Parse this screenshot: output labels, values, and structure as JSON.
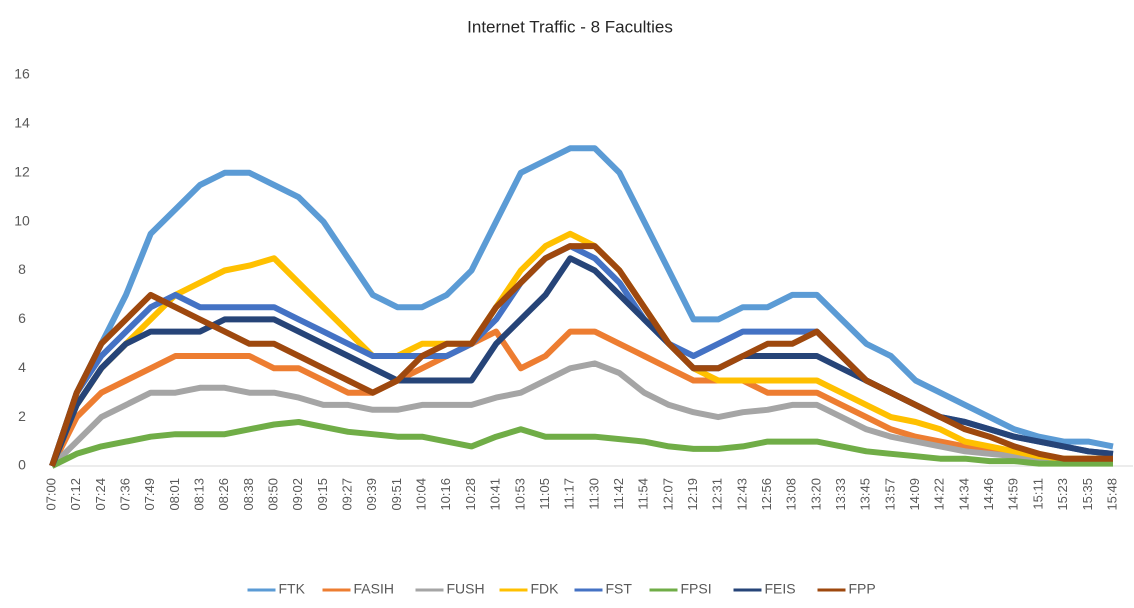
{
  "chart_data": {
    "type": "line",
    "title": "Internet Traffic - 8 Faculties",
    "categories": [
      "07:00",
      "07:12",
      "07:24",
      "07:36",
      "07:49",
      "08:01",
      "08:13",
      "08:26",
      "08:38",
      "08:50",
      "09:02",
      "09:15",
      "09:27",
      "09:39",
      "09:51",
      "10:04",
      "10:16",
      "10:28",
      "10:41",
      "10:53",
      "11:05",
      "11:17",
      "11:30",
      "11:42",
      "11:54",
      "12:07",
      "12:19",
      "12:31",
      "12:43",
      "12:56",
      "13:08",
      "13:20",
      "13:33",
      "13:45",
      "13:57",
      "14:09",
      "14:22",
      "14:34",
      "14:46",
      "14:59",
      "15:11",
      "15:23",
      "15:35",
      "15:48"
    ],
    "series": [
      {
        "name": "FTK",
        "color": "#5b9bd5",
        "values": [
          0,
          3,
          5,
          7,
          9.5,
          10.5,
          11.5,
          12,
          12,
          11.5,
          11,
          10,
          8.5,
          7,
          6.5,
          6.5,
          7,
          8,
          10,
          12,
          12.5,
          13,
          13,
          12,
          10,
          8,
          6,
          6,
          6.5,
          6.5,
          7,
          7,
          6,
          5,
          4.5,
          3.5,
          3,
          2.5,
          2,
          1.5,
          1.2,
          1,
          1,
          0.8
        ]
      },
      {
        "name": "FASIH",
        "color": "#ed7d31",
        "values": [
          0,
          2,
          3,
          3.5,
          4,
          4.5,
          4.5,
          4.5,
          4.5,
          4,
          4,
          3.5,
          3,
          3,
          3.5,
          4,
          4.5,
          5,
          5.5,
          4,
          4.5,
          5.5,
          5.5,
          5,
          4.5,
          4,
          3.5,
          3.5,
          3.5,
          3,
          3,
          3,
          2.5,
          2,
          1.5,
          1.2,
          1,
          0.8,
          0.6,
          0.5,
          0.4,
          0.3,
          0.3,
          0.3
        ]
      },
      {
        "name": "FUSH",
        "color": "#a5a5a5",
        "values": [
          0,
          1,
          2,
          2.5,
          3,
          3,
          3.2,
          3.2,
          3,
          3,
          2.8,
          2.5,
          2.5,
          2.3,
          2.3,
          2.5,
          2.5,
          2.5,
          2.8,
          3,
          3.5,
          4,
          4.2,
          3.8,
          3,
          2.5,
          2.2,
          2,
          2.2,
          2.3,
          2.5,
          2.5,
          2,
          1.5,
          1.2,
          1,
          0.8,
          0.6,
          0.5,
          0.4,
          0.3,
          0.3,
          0.3,
          0.3
        ]
      },
      {
        "name": "FDK",
        "color": "#ffc000",
        "values": [
          0,
          2.5,
          4,
          5,
          6,
          7,
          7.5,
          8,
          8.2,
          8.5,
          7.5,
          6.5,
          5.5,
          4.5,
          4.5,
          5,
          5,
          5,
          6.5,
          8,
          9,
          9.5,
          9,
          8,
          6.5,
          5,
          4,
          3.5,
          3.5,
          3.5,
          3.5,
          3.5,
          3,
          2.5,
          2,
          1.8,
          1.5,
          1,
          0.8,
          0.6,
          0.4,
          0.3,
          0.3,
          0.3
        ]
      },
      {
        "name": "FST",
        "color": "#4472c4",
        "values": [
          0,
          3,
          4.5,
          5.5,
          6.5,
          7,
          6.5,
          6.5,
          6.5,
          6.5,
          6,
          5.5,
          5,
          4.5,
          4.5,
          4.5,
          4.5,
          5,
          6,
          7.5,
          8.5,
          9,
          8.5,
          7.5,
          6,
          5,
          4.5,
          5,
          5.5,
          5.5,
          5.5,
          5.5,
          4.5,
          3.5,
          3,
          2.5,
          2,
          1.8,
          1.5,
          1.2,
          1,
          0.8,
          0.6,
          0.5
        ]
      },
      {
        "name": "FPSI",
        "color": "#70ad47",
        "values": [
          0,
          0.5,
          0.8,
          1,
          1.2,
          1.3,
          1.3,
          1.3,
          1.5,
          1.7,
          1.8,
          1.6,
          1.4,
          1.3,
          1.2,
          1.2,
          1,
          0.8,
          1.2,
          1.5,
          1.2,
          1.2,
          1.2,
          1.1,
          1,
          0.8,
          0.7,
          0.7,
          0.8,
          1,
          1,
          1,
          0.8,
          0.6,
          0.5,
          0.4,
          0.3,
          0.3,
          0.2,
          0.2,
          0.1,
          0.1,
          0.1,
          0.1
        ]
      },
      {
        "name": "FEIS",
        "color": "#264478",
        "values": [
          0,
          2.5,
          4,
          5,
          5.5,
          5.5,
          5.5,
          6,
          6,
          6,
          5.5,
          5,
          4.5,
          4,
          3.5,
          3.5,
          3.5,
          3.5,
          5,
          6,
          7,
          8.5,
          8,
          7,
          6,
          5,
          4,
          4,
          4.5,
          4.5,
          4.5,
          4.5,
          4,
          3.5,
          3,
          2.5,
          2,
          1.8,
          1.5,
          1.2,
          1,
          0.8,
          0.6,
          0.5
        ]
      },
      {
        "name": "FPP",
        "color": "#9e480e",
        "values": [
          0,
          3,
          5,
          6,
          7,
          6.5,
          6,
          5.5,
          5,
          5,
          4.5,
          4,
          3.5,
          3,
          3.5,
          4.5,
          5,
          5,
          6.5,
          7.5,
          8.5,
          9,
          9,
          8,
          6.5,
          5,
          4,
          4,
          4.5,
          5,
          5,
          5.5,
          4.5,
          3.5,
          3,
          2.5,
          2,
          1.5,
          1.2,
          0.8,
          0.5,
          0.3,
          0.3,
          0.3
        ]
      }
    ],
    "ylim": [
      0,
      16
    ],
    "yticks": [
      0,
      2,
      4,
      6,
      8,
      10,
      12,
      14,
      16
    ],
    "grid": false,
    "legend": "bottom"
  }
}
